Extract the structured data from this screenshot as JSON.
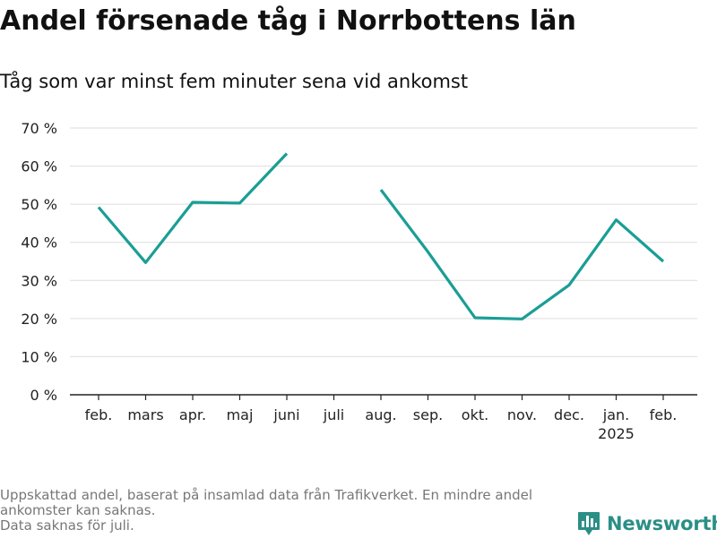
{
  "chart_data": {
    "type": "line",
    "title": "Andel försenade tåg i Norrbottens län",
    "subtitle": "Tåg som var minst fem minuter sena vid ankomst",
    "categories": [
      "feb.",
      "mars",
      "apr.",
      "maj",
      "juni",
      "juli",
      "aug.",
      "sep.",
      "okt.",
      "nov.",
      "dec.",
      "jan.",
      "feb."
    ],
    "category_sublabels": [
      "",
      "",
      "",
      "",
      "",
      "",
      "",
      "",
      "",
      "",
      "",
      "2025",
      ""
    ],
    "series": [
      {
        "values": [
          49.2,
          34.7,
          50.5,
          50.3,
          63.3,
          null,
          53.8,
          37.5,
          20.2,
          19.9,
          28.8,
          45.9,
          35.0
        ]
      }
    ],
    "ylim": [
      0,
      70
    ],
    "yticks": [
      0,
      10,
      20,
      30,
      40,
      50,
      60,
      70
    ],
    "ytick_labels": [
      "0 %",
      "10 %",
      "20 %",
      "30 %",
      "40 %",
      "50 %",
      "60 %",
      "70 %"
    ],
    "xlabel": "",
    "ylabel": "",
    "grid": true,
    "legend": "none",
    "line_color": "#1a9e95"
  },
  "footnotes": [
    "Uppskattad andel, baserat på insamlad data från Trafikverket. En mindre andel",
    "ankomster kan saknas.",
    "Data saknas för juli."
  ],
  "brand": {
    "name": "Newsworthy",
    "logo_icon": "newsworthy-bar-chart-icon",
    "color": "#2b8f86"
  }
}
